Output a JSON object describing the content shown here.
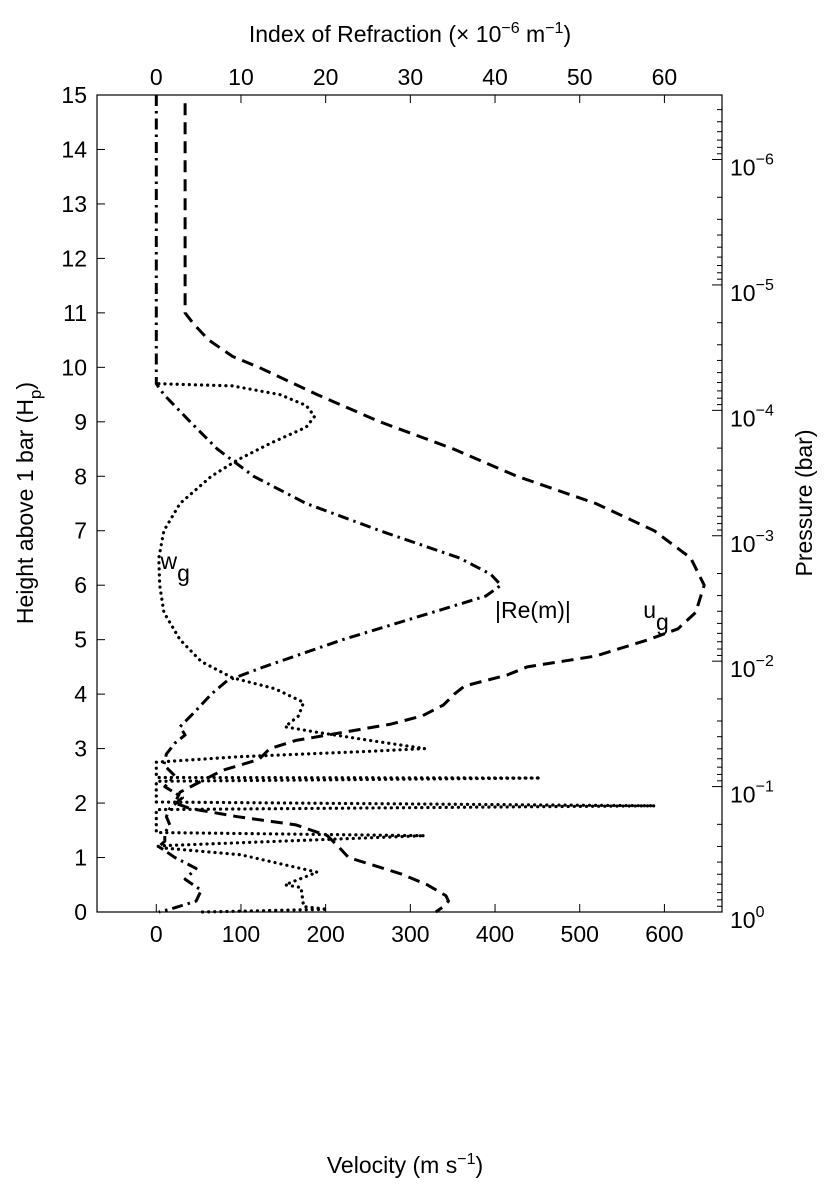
{
  "chart_data": {
    "type": "line",
    "x_bottom": {
      "label": {
        "text": "Velocity (m s",
        "sup": "−1",
        "end": ")"
      },
      "lim": [
        -70,
        668
      ],
      "ticks": [
        0,
        100,
        200,
        300,
        400,
        500,
        600
      ]
    },
    "x_top": {
      "label": {
        "text": "Index of Refraction (× 10",
        "sup1": "−6",
        "mid": " m",
        "sup2": "−1",
        "end": ")"
      },
      "lim": [
        -7,
        66.8
      ],
      "ticks": [
        0,
        10,
        20,
        30,
        40,
        50,
        60
      ]
    },
    "y_left": {
      "label": {
        "text": "Height above 1 bar (H",
        "sub": "p",
        "end": ")"
      },
      "lim": [
        0,
        15
      ],
      "ticks": [
        0,
        1,
        2,
        3,
        4,
        5,
        6,
        7,
        8,
        9,
        10,
        11,
        12,
        13,
        14,
        15
      ]
    },
    "y_right": {
      "label": "Pressure (bar)",
      "scale": "log",
      "relation": "pressure = exp(-height)",
      "ticks": [
        {
          "base": "10",
          "exp": "0",
          "value": 1
        },
        {
          "base": "10",
          "exp": "−1",
          "value": 0.1
        },
        {
          "base": "10",
          "exp": "−2",
          "value": 0.01
        },
        {
          "base": "10",
          "exp": "−3",
          "value": 0.001
        },
        {
          "base": "10",
          "exp": "−4",
          "value": 0.0001
        },
        {
          "base": "10",
          "exp": "−5",
          "value": 1e-05
        },
        {
          "base": "10",
          "exp": "−6",
          "value": 1e-06
        }
      ]
    },
    "series": [
      {
        "name": "u_g",
        "axis": "velocity",
        "style": "dashed",
        "label": {
          "main": "u",
          "sub": "g",
          "at": {
            "x": 575,
            "y": 5.4
          }
        },
        "points": [
          [
            34,
            14.85
          ],
          [
            34,
            11
          ],
          [
            44,
            10.8
          ],
          [
            62,
            10.5
          ],
          [
            90,
            10.2
          ],
          [
            121,
            10
          ],
          [
            190,
            9.5
          ],
          [
            264,
            9
          ],
          [
            351,
            8.5
          ],
          [
            426,
            8
          ],
          [
            519,
            7.5
          ],
          [
            588,
            7
          ],
          [
            631,
            6.5
          ],
          [
            647,
            6
          ],
          [
            637,
            5.5
          ],
          [
            616,
            5.2
          ],
          [
            581,
            5
          ],
          [
            519,
            4.7
          ],
          [
            438,
            4.5
          ],
          [
            414,
            4.35
          ],
          [
            364,
            4.15
          ],
          [
            352,
            4
          ],
          [
            339,
            3.8
          ],
          [
            314,
            3.6
          ],
          [
            277,
            3.45
          ],
          [
            221,
            3.3
          ],
          [
            165,
            3.15
          ],
          [
            134,
            3
          ],
          [
            121,
            2.8
          ],
          [
            78,
            2.6
          ],
          [
            53,
            2.4
          ],
          [
            28,
            2.2
          ],
          [
            22,
            2
          ],
          [
            40,
            1.9
          ],
          [
            96,
            1.75
          ],
          [
            165,
            1.6
          ],
          [
            202,
            1.4
          ],
          [
            215,
            1.2
          ],
          [
            227,
            1
          ],
          [
            289,
            0.7
          ],
          [
            320,
            0.5
          ],
          [
            342,
            0.3
          ],
          [
            345,
            0.2
          ],
          [
            339,
            0.1
          ],
          [
            330,
            0
          ]
        ]
      },
      {
        "name": "|Re(m)|",
        "axis": "index",
        "style": "dash-dot",
        "label": {
          "main": "|Re(m)|",
          "at": {
            "x": 400,
            "y": 5.4
          }
        },
        "points": [
          [
            0,
            15
          ],
          [
            0,
            9.7
          ],
          [
            0.9,
            9.5
          ],
          [
            4,
            9
          ],
          [
            7.2,
            8.5
          ],
          [
            11.5,
            8
          ],
          [
            17.7,
            7.5
          ],
          [
            26.4,
            7
          ],
          [
            35.8,
            6.5
          ],
          [
            39.5,
            6.2
          ],
          [
            40.7,
            6
          ],
          [
            38.9,
            5.8
          ],
          [
            32.6,
            5.5
          ],
          [
            22,
            5
          ],
          [
            12.7,
            4.5
          ],
          [
            8.4,
            4.25
          ],
          [
            6.5,
            4
          ],
          [
            4.7,
            3.7
          ],
          [
            2.8,
            3.4
          ],
          [
            3.4,
            3.25
          ],
          [
            2.2,
            3.1
          ],
          [
            1.2,
            2.9
          ],
          [
            0.9,
            2.7
          ],
          [
            2.2,
            2.5
          ],
          [
            1,
            2.3
          ],
          [
            3.1,
            2.1
          ],
          [
            1.6,
            1.9
          ],
          [
            1.2,
            1.75
          ],
          [
            1.6,
            1.6
          ],
          [
            1,
            1.45
          ],
          [
            1,
            1.3
          ],
          [
            0.3,
            1.2
          ],
          [
            2.2,
            1
          ],
          [
            4.7,
            0.8
          ],
          [
            3.4,
            0.6
          ],
          [
            5.3,
            0.4
          ],
          [
            4.7,
            0.2
          ],
          [
            1.6,
            0.05
          ],
          [
            0.3,
            0
          ]
        ]
      },
      {
        "name": "w_g",
        "axis": "velocity",
        "style": "dotted",
        "label": {
          "main": "w",
          "sub": "g",
          "at": {
            "x": 5,
            "y": 6.3
          }
        },
        "points": [
          [
            3,
            9.7
          ],
          [
            90,
            9.66
          ],
          [
            146,
            9.5
          ],
          [
            177,
            9.3
          ],
          [
            187,
            9.1
          ],
          [
            177,
            8.9
          ],
          [
            134,
            8.6
          ],
          [
            96,
            8.3
          ],
          [
            65,
            8
          ],
          [
            28,
            7.5
          ],
          [
            9,
            7
          ],
          [
            3,
            6.5
          ],
          [
            4,
            6
          ],
          [
            9,
            5.5
          ],
          [
            28,
            5
          ],
          [
            53,
            4.6
          ],
          [
            90,
            4.3
          ],
          [
            140,
            4.1
          ],
          [
            174,
            3.85
          ],
          [
            168,
            3.6
          ],
          [
            152,
            3.4
          ],
          [
            190,
            3.3
          ],
          [
            252,
            3.15
          ],
          [
            317,
            3
          ],
          [
            252,
            2.95
          ],
          [
            96,
            2.85
          ],
          [
            0,
            2.75
          ],
          [
            0,
            2.47
          ],
          [
            454,
            2.46
          ],
          [
            0,
            2.4
          ],
          [
            0,
            2.02
          ],
          [
            589,
            1.95
          ],
          [
            0,
            1.88
          ],
          [
            0,
            1.46
          ],
          [
            317,
            1.4
          ],
          [
            10,
            1.22
          ],
          [
            0,
            1.2
          ],
          [
            5,
            1.18
          ],
          [
            100,
            1.05
          ],
          [
            190,
            0.73
          ],
          [
            152,
            0.5
          ],
          [
            171,
            0.45
          ],
          [
            174,
            0.1
          ],
          [
            202,
            0.05
          ],
          [
            53,
            0
          ]
        ]
      }
    ]
  }
}
